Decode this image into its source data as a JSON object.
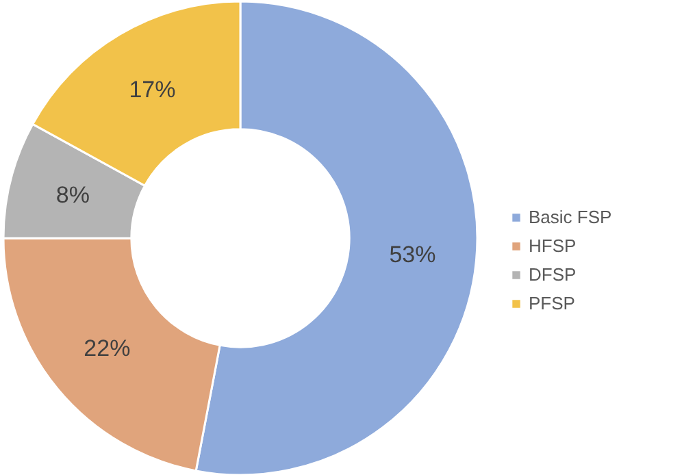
{
  "chart_data": {
    "type": "donut",
    "categories": [
      "Basic FSP",
      "HFSP",
      "DFSP",
      "PFSP"
    ],
    "values": [
      53,
      22,
      8,
      17
    ],
    "colors": [
      "#8eaadb",
      "#e0a47c",
      "#b4b4b4",
      "#f2c24a"
    ],
    "value_labels": [
      "53%",
      "22%",
      "8%",
      "17%"
    ],
    "legend": "right"
  }
}
